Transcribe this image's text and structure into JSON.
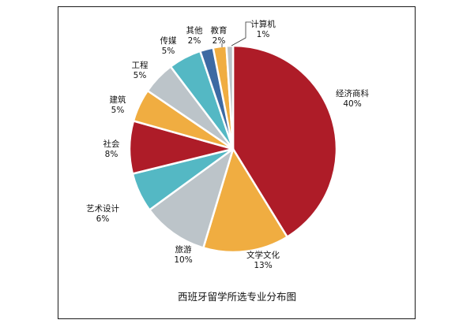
{
  "chart_data": {
    "type": "pie",
    "title": "西班牙留学所选专业分布图",
    "categories": [
      "经济商科",
      "文学文化",
      "旅游",
      "艺术设计",
      "社会",
      "建筑",
      "工程",
      "传媒",
      "其他",
      "教育",
      "计算机"
    ],
    "values": [
      40,
      13,
      10,
      6,
      8,
      5,
      5,
      5,
      2,
      2,
      1
    ],
    "value_labels": [
      "40%",
      "13%",
      "10%",
      "6%",
      "8%",
      "5%",
      "5%",
      "5%",
      "2%",
      "2%",
      "1%"
    ],
    "colors": [
      "#ae1c28",
      "#f0ad41",
      "#bcc4c9",
      "#54b8c4",
      "#ae1c28",
      "#f0ad41",
      "#bcc4c9",
      "#54b8c4",
      "#3d6aa3",
      "#f0ad41",
      "#bcc4c9"
    ],
    "direction": "clockwise",
    "legend": "none"
  }
}
